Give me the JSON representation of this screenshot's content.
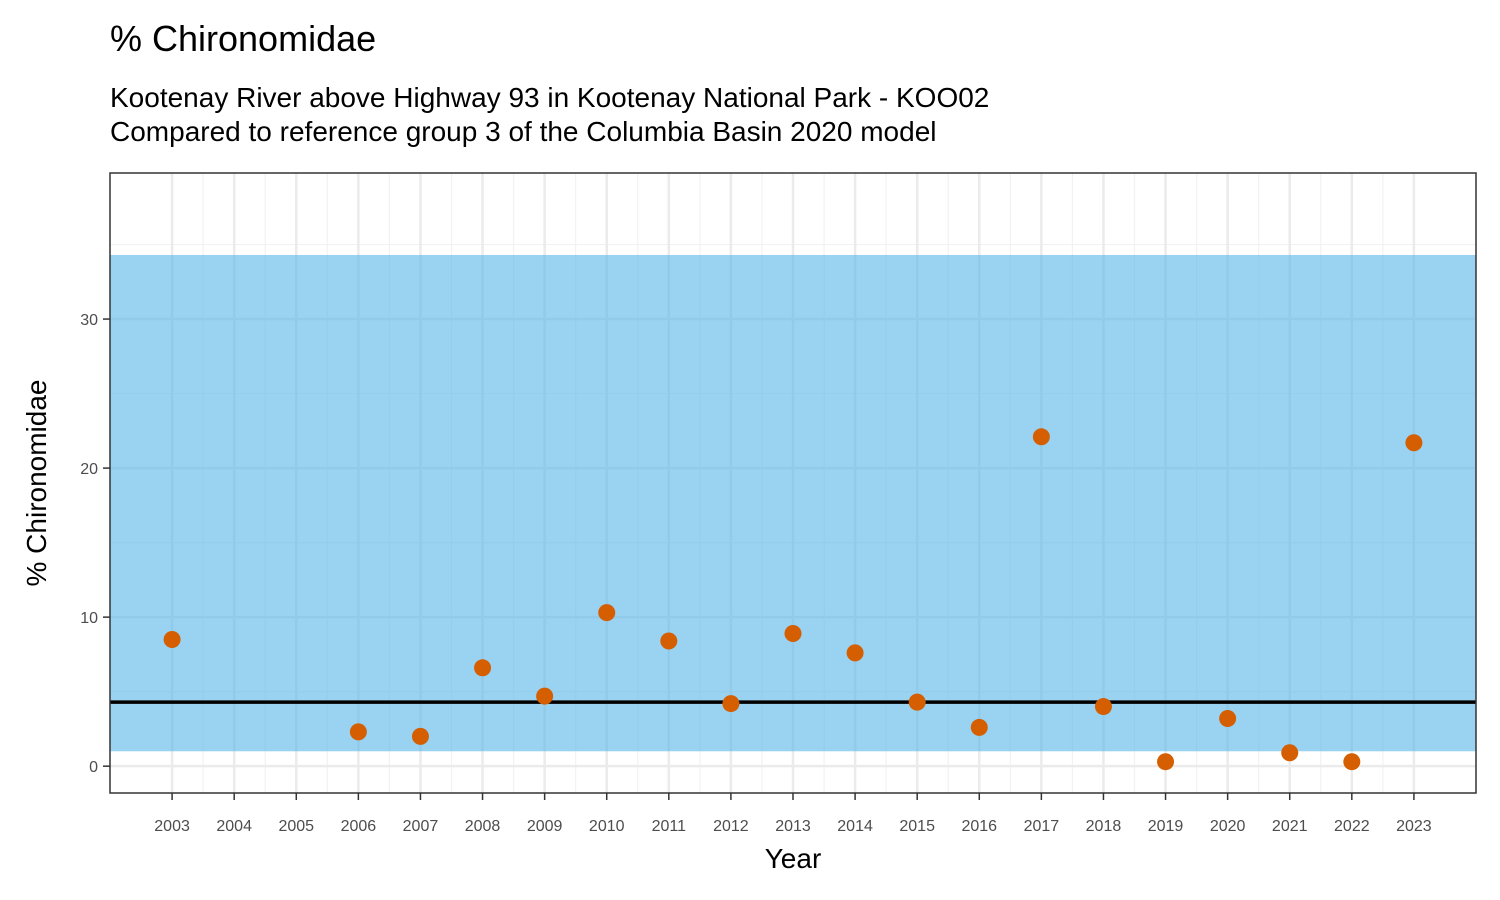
{
  "chart_data": {
    "type": "scatter",
    "title": "% Chironomidae",
    "subtitle_lines": [
      "Kootenay River above Highway 93 in Kootenay National Park - KOO02",
      "Compared to reference group 3 of the Columbia Basin 2020 model"
    ],
    "xlabel": "Year",
    "ylabel": "% Chironomidae",
    "x_ticks": [
      2003,
      2004,
      2005,
      2006,
      2007,
      2008,
      2009,
      2010,
      2011,
      2012,
      2013,
      2014,
      2015,
      2016,
      2017,
      2018,
      2019,
      2020,
      2021,
      2022,
      2023
    ],
    "y_ticks": [
      0,
      10,
      20,
      30
    ],
    "xlim": [
      2002.0,
      2024.0
    ],
    "ylim": [
      -1.8,
      39.8
    ],
    "grid": true,
    "reference_band": {
      "low": 1.0,
      "high": 34.3,
      "color": "#56B4E9"
    },
    "reference_line": {
      "value": 4.3,
      "color": "#000000"
    },
    "point_color": "#D55E00",
    "points": [
      {
        "x": 2003,
        "y": 8.5
      },
      {
        "x": 2006,
        "y": 2.3
      },
      {
        "x": 2007,
        "y": 2.0
      },
      {
        "x": 2008,
        "y": 6.6
      },
      {
        "x": 2009,
        "y": 4.7
      },
      {
        "x": 2010,
        "y": 10.3
      },
      {
        "x": 2011,
        "y": 8.4
      },
      {
        "x": 2012,
        "y": 4.2
      },
      {
        "x": 2013,
        "y": 8.9
      },
      {
        "x": 2014,
        "y": 7.6
      },
      {
        "x": 2015,
        "y": 4.3
      },
      {
        "x": 2016,
        "y": 2.6
      },
      {
        "x": 2017,
        "y": 22.1
      },
      {
        "x": 2018,
        "y": 4.0
      },
      {
        "x": 2019,
        "y": 0.3
      },
      {
        "x": 2020,
        "y": 3.2
      },
      {
        "x": 2021,
        "y": 0.9
      },
      {
        "x": 2022,
        "y": 0.3
      },
      {
        "x": 2023,
        "y": 21.7
      }
    ]
  }
}
